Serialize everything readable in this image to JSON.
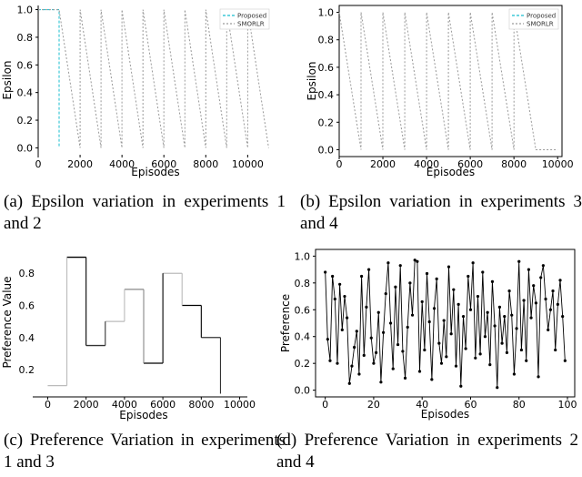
{
  "captions": [
    "(a) Epsilon variation in experiments 1 and 2",
    "(b) Epsilon variation in experiments 3 and 4",
    "(c) Preference Variation in experiments 1 and 3",
    "(d) Preference Variation in experiments 2 and 4"
  ],
  "chart_data": [
    {
      "type": "line",
      "id": "a",
      "xlabel": "Episodes",
      "ylabel": "Epsilon",
      "xlim": [
        0,
        11200
      ],
      "ylim": [
        -0.05,
        1.03
      ],
      "xticks": [
        0,
        2000,
        4000,
        6000,
        8000,
        10000
      ],
      "yticks": [
        0.0,
        0.2,
        0.4,
        0.6,
        0.8,
        1.0
      ],
      "legend": {
        "placement": "top-right",
        "entries": [
          "Proposed",
          "SMORLR"
        ]
      },
      "series": [
        {
          "name": "Proposed",
          "color": "#17becf",
          "dash": "3,2",
          "x": [
            0,
            1000,
            1000,
            1000
          ],
          "y": [
            1.0,
            1.0,
            0.0,
            0.0
          ]
        },
        {
          "name": "SMORLR",
          "color": "#9a9a9a",
          "dash": "2,2",
          "x": [
            0,
            1000,
            2000,
            2000,
            3000,
            3000,
            4000,
            4000,
            5000,
            5000,
            6000,
            6000,
            7000,
            7000,
            8000,
            8000,
            9000,
            9000,
            10000,
            10000,
            11000
          ],
          "y": [
            1.0,
            1.0,
            0.0,
            1.0,
            0.0,
            1.0,
            0.0,
            1.0,
            0.0,
            1.0,
            0.0,
            1.0,
            0.0,
            1.0,
            0.0,
            1.0,
            0.0,
            1.0,
            0.0,
            1.0,
            0.0
          ]
        }
      ]
    },
    {
      "type": "line",
      "id": "b",
      "xlabel": "Episodes",
      "ylabel": "Epsilon",
      "xlim": [
        0,
        10200
      ],
      "ylim": [
        -0.05,
        1.05
      ],
      "xticks": [
        0,
        2000,
        4000,
        6000,
        8000,
        10000
      ],
      "yticks": [
        0.0,
        0.2,
        0.4,
        0.6,
        0.8,
        1.0
      ],
      "legend": {
        "placement": "top-right",
        "entries": [
          "Proposed",
          "SMORLR"
        ]
      },
      "series": [
        {
          "name": "Proposed",
          "color": "#17becf",
          "dash": "3,2",
          "x": [],
          "y": []
        },
        {
          "name": "SMORLR",
          "color": "#9a9a9a",
          "dash": "2,2",
          "x": [
            0,
            1000,
            1000,
            2000,
            2000,
            3000,
            3000,
            4000,
            4000,
            5000,
            5000,
            6000,
            6000,
            7000,
            7000,
            8000,
            8000,
            9000,
            9000,
            10000
          ],
          "y": [
            1.0,
            0.0,
            1.0,
            0.0,
            1.0,
            0.0,
            1.0,
            0.0,
            1.0,
            0.0,
            1.0,
            0.0,
            1.0,
            0.0,
            1.0,
            0.0,
            1.0,
            0.0,
            0.0,
            0.0
          ]
        }
      ]
    },
    {
      "type": "line",
      "id": "c",
      "xlabel": "Episodes",
      "ylabel": "Preference Value",
      "xlim": [
        -400,
        10400
      ],
      "ylim": [
        0.03,
        0.96
      ],
      "xticks": [
        0,
        2000,
        4000,
        6000,
        8000,
        10000
      ],
      "yticks": [
        0.2,
        0.4,
        0.6,
        0.8
      ],
      "segments": [
        {
          "x": [
            0,
            1000
          ],
          "y": [
            0.1,
            0.1
          ],
          "color": "#bbbbbb"
        },
        {
          "x": [
            1000,
            2000
          ],
          "y": [
            0.9,
            0.9
          ],
          "color": "#000000"
        },
        {
          "x": [
            2000,
            3000
          ],
          "y": [
            0.35,
            0.35
          ],
          "color": "#333333"
        },
        {
          "x": [
            3000,
            4000
          ],
          "y": [
            0.5,
            0.5
          ],
          "color": "#bbbbbb"
        },
        {
          "x": [
            4000,
            5000
          ],
          "y": [
            0.7,
            0.7
          ],
          "color": "#888888"
        },
        {
          "x": [
            5000,
            6000
          ],
          "y": [
            0.24,
            0.24
          ],
          "color": "#000000"
        },
        {
          "x": [
            6000,
            7000
          ],
          "y": [
            0.8,
            0.8
          ],
          "color": "#bbbbbb"
        },
        {
          "x": [
            7000,
            8000
          ],
          "y": [
            0.6,
            0.6
          ],
          "color": "#000000"
        },
        {
          "x": [
            8000,
            9000
          ],
          "y": [
            0.4,
            0.4
          ],
          "color": "#333333"
        }
      ]
    },
    {
      "type": "line",
      "id": "d",
      "xlabel": "Episodes",
      "ylabel": "Preference",
      "xlim": [
        -4,
        103
      ],
      "ylim": [
        -0.05,
        1.05
      ],
      "xticks": [
        0,
        20,
        40,
        60,
        80,
        100
      ],
      "yticks": [
        0.0,
        0.2,
        0.4,
        0.6,
        0.8,
        1.0
      ],
      "markers": true,
      "x": [
        0,
        1,
        2,
        3,
        4,
        5,
        6,
        7,
        8,
        9,
        10,
        11,
        12,
        13,
        14,
        15,
        16,
        17,
        18,
        19,
        20,
        21,
        22,
        23,
        24,
        25,
        26,
        27,
        28,
        29,
        30,
        31,
        32,
        33,
        34,
        35,
        36,
        37,
        38,
        39,
        40,
        41,
        42,
        43,
        44,
        45,
        46,
        47,
        48,
        49,
        50,
        51,
        52,
        53,
        54,
        55,
        56,
        57,
        58,
        59,
        60,
        61,
        62,
        63,
        64,
        65,
        66,
        67,
        68,
        69,
        70,
        71,
        72,
        73,
        74,
        75,
        76,
        77,
        78,
        79,
        80,
        81,
        82,
        83,
        84,
        85,
        86,
        87,
        88,
        89,
        90,
        91,
        92,
        93,
        94,
        95,
        96,
        97,
        98,
        99
      ],
      "y": [
        0.88,
        0.38,
        0.22,
        0.85,
        0.68,
        0.2,
        0.79,
        0.45,
        0.7,
        0.54,
        0.05,
        0.18,
        0.32,
        0.44,
        0.12,
        0.85,
        0.26,
        0.62,
        0.9,
        0.39,
        0.2,
        0.28,
        0.58,
        0.06,
        0.43,
        0.72,
        0.95,
        0.5,
        0.16,
        0.77,
        0.34,
        0.93,
        0.29,
        0.09,
        0.47,
        0.8,
        0.56,
        0.97,
        0.96,
        0.14,
        0.66,
        0.3,
        0.87,
        0.51,
        0.08,
        0.61,
        0.83,
        0.35,
        0.2,
        0.52,
        0.25,
        0.92,
        0.42,
        0.75,
        0.18,
        0.64,
        0.03,
        0.55,
        0.31,
        0.85,
        0.6,
        0.95,
        0.24,
        0.7,
        0.27,
        0.88,
        0.4,
        0.58,
        0.19,
        0.81,
        0.48,
        0.02,
        0.62,
        0.35,
        0.55,
        0.28,
        0.74,
        0.56,
        0.12,
        0.46,
        0.96,
        0.3,
        0.67,
        0.22,
        0.9,
        0.54,
        0.78,
        0.65,
        0.1,
        0.84,
        0.93,
        0.68,
        0.45,
        0.6,
        0.74,
        0.3,
        0.64,
        0.82,
        0.55,
        0.22
      ]
    }
  ]
}
